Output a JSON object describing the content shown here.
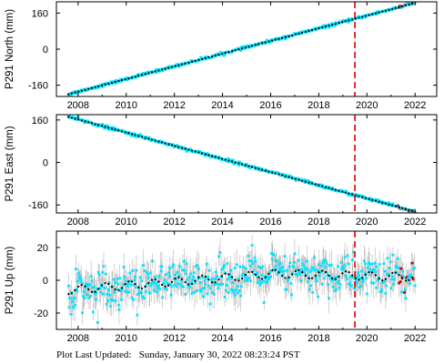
{
  "footer": {
    "label": "Plot Last Updated:",
    "timestamp": "Sunday, January 30, 2022 08:23:24 PST"
  },
  "colors": {
    "points": "#00e5ff",
    "error_bars": "#b4b4b4",
    "model_fit": "#000000",
    "recent_points": "#d40000",
    "event_line": "#e00000"
  },
  "chart_data": [
    {
      "type": "scatter",
      "ylabel": "P291 North (mm)",
      "xlim": [
        2007.1,
        2022.9
      ],
      "ylim": [
        -210,
        210
      ],
      "xticks": [
        2008,
        2010,
        2012,
        2014,
        2016,
        2018,
        2020,
        2022
      ],
      "yticks": [
        -160,
        0,
        160
      ],
      "event_line_x": 2019.5,
      "series": [
        {
          "x": [
            2007.6,
            2022.0
          ],
          "values": [
            -200,
            205
          ]
        }
      ],
      "noise_mm": 3,
      "error_bar_mm": 3
    },
    {
      "type": "scatter",
      "ylabel": "P291 East (mm)",
      "xlim": [
        2007.1,
        2022.9
      ],
      "ylim": [
        -190,
        180
      ],
      "xticks": [
        2008,
        2010,
        2012,
        2014,
        2016,
        2018,
        2020,
        2022
      ],
      "yticks": [
        -160,
        0,
        160
      ],
      "event_line_x": 2019.5,
      "series": [
        {
          "x": [
            2007.6,
            2022.0
          ],
          "values": [
            172,
            -185
          ]
        }
      ],
      "noise_mm": 3,
      "error_bar_mm": 3
    },
    {
      "type": "scatter",
      "ylabel": "P291 Up (mm)",
      "xlim": [
        2007.1,
        2022.9
      ],
      "ylim": [
        -30,
        30
      ],
      "xticks": [
        2008,
        2010,
        2012,
        2014,
        2016,
        2018,
        2020,
        2022
      ],
      "yticks": [
        -20,
        0,
        20
      ],
      "event_line_x": 2019.5,
      "trend": {
        "start": -6,
        "end": 2,
        "peak": 4,
        "peak_x": 2016.2
      },
      "seasonal_amplitude": 2.5,
      "noise_mm": 6,
      "error_bar_mm": 7
    }
  ]
}
